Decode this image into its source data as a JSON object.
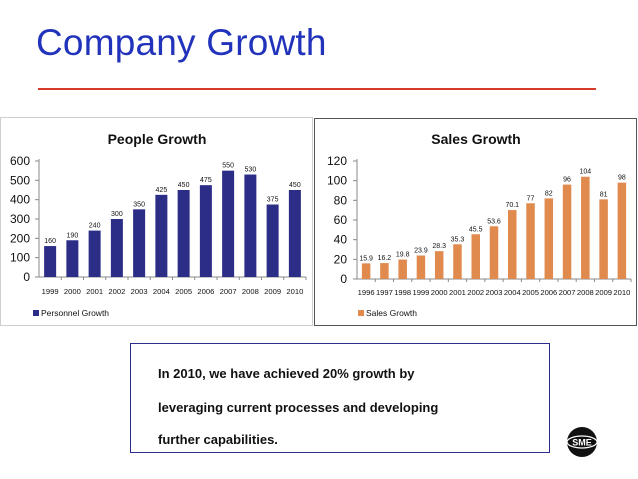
{
  "slide": {
    "title": "Company Growth"
  },
  "note": {
    "lines": [
      "In 2010, we have achieved 20% growth by",
      "leveraging current processes and developing",
      "further capabilities."
    ]
  },
  "logo": {
    "text": "SME"
  },
  "colors": {
    "title": "#2233bb",
    "rule": "#d83a2c",
    "people_bar": "#2b2d86",
    "sales_bar": "#e08a4e",
    "note_border": "#2b2f8c"
  },
  "chart_data": [
    {
      "type": "bar",
      "title": "People Growth",
      "categories": [
        "1999",
        "2000",
        "2001",
        "2002",
        "2003",
        "2004",
        "2005",
        "2006",
        "2007",
        "2008",
        "2009",
        "2010"
      ],
      "series": [
        {
          "name": "Personnel Growth",
          "values": [
            160,
            190,
            240,
            300,
            350,
            425,
            450,
            475,
            550,
            530,
            375,
            450
          ]
        }
      ],
      "data_labels": [
        "160",
        "190",
        "240",
        "300",
        "350",
        "425",
        "450",
        "475",
        "550",
        "530",
        "375",
        "450"
      ],
      "ylim": [
        0,
        600
      ],
      "yticks": [
        0,
        100,
        200,
        300,
        400,
        500,
        600
      ],
      "xlabel": "",
      "ylabel": "",
      "grid": false,
      "legend": "bottom-left"
    },
    {
      "type": "bar",
      "title": "Sales Growth",
      "categories": [
        "1996",
        "1997",
        "1998",
        "1999",
        "2000",
        "2001",
        "2002",
        "2003",
        "2004",
        "2005",
        "2006",
        "2007",
        "2008",
        "2009",
        "2010"
      ],
      "series": [
        {
          "name": "Sales Growth",
          "values": [
            15.9,
            16.2,
            19.8,
            23.9,
            28.3,
            35.3,
            45.5,
            53.6,
            70.1,
            77,
            82,
            96,
            104,
            81,
            98
          ]
        }
      ],
      "data_labels": [
        "15.9",
        "16.2",
        "19.8",
        "23.9",
        "28.3",
        "35.3",
        "45.5",
        "53.6",
        "70.1",
        "77",
        "82",
        "96",
        "104",
        "81",
        "98"
      ],
      "ylim": [
        0,
        120
      ],
      "yticks": [
        0,
        20,
        40,
        60,
        80,
        100,
        120
      ],
      "xlabel": "",
      "ylabel": "",
      "grid": false,
      "legend": "bottom-left"
    }
  ]
}
